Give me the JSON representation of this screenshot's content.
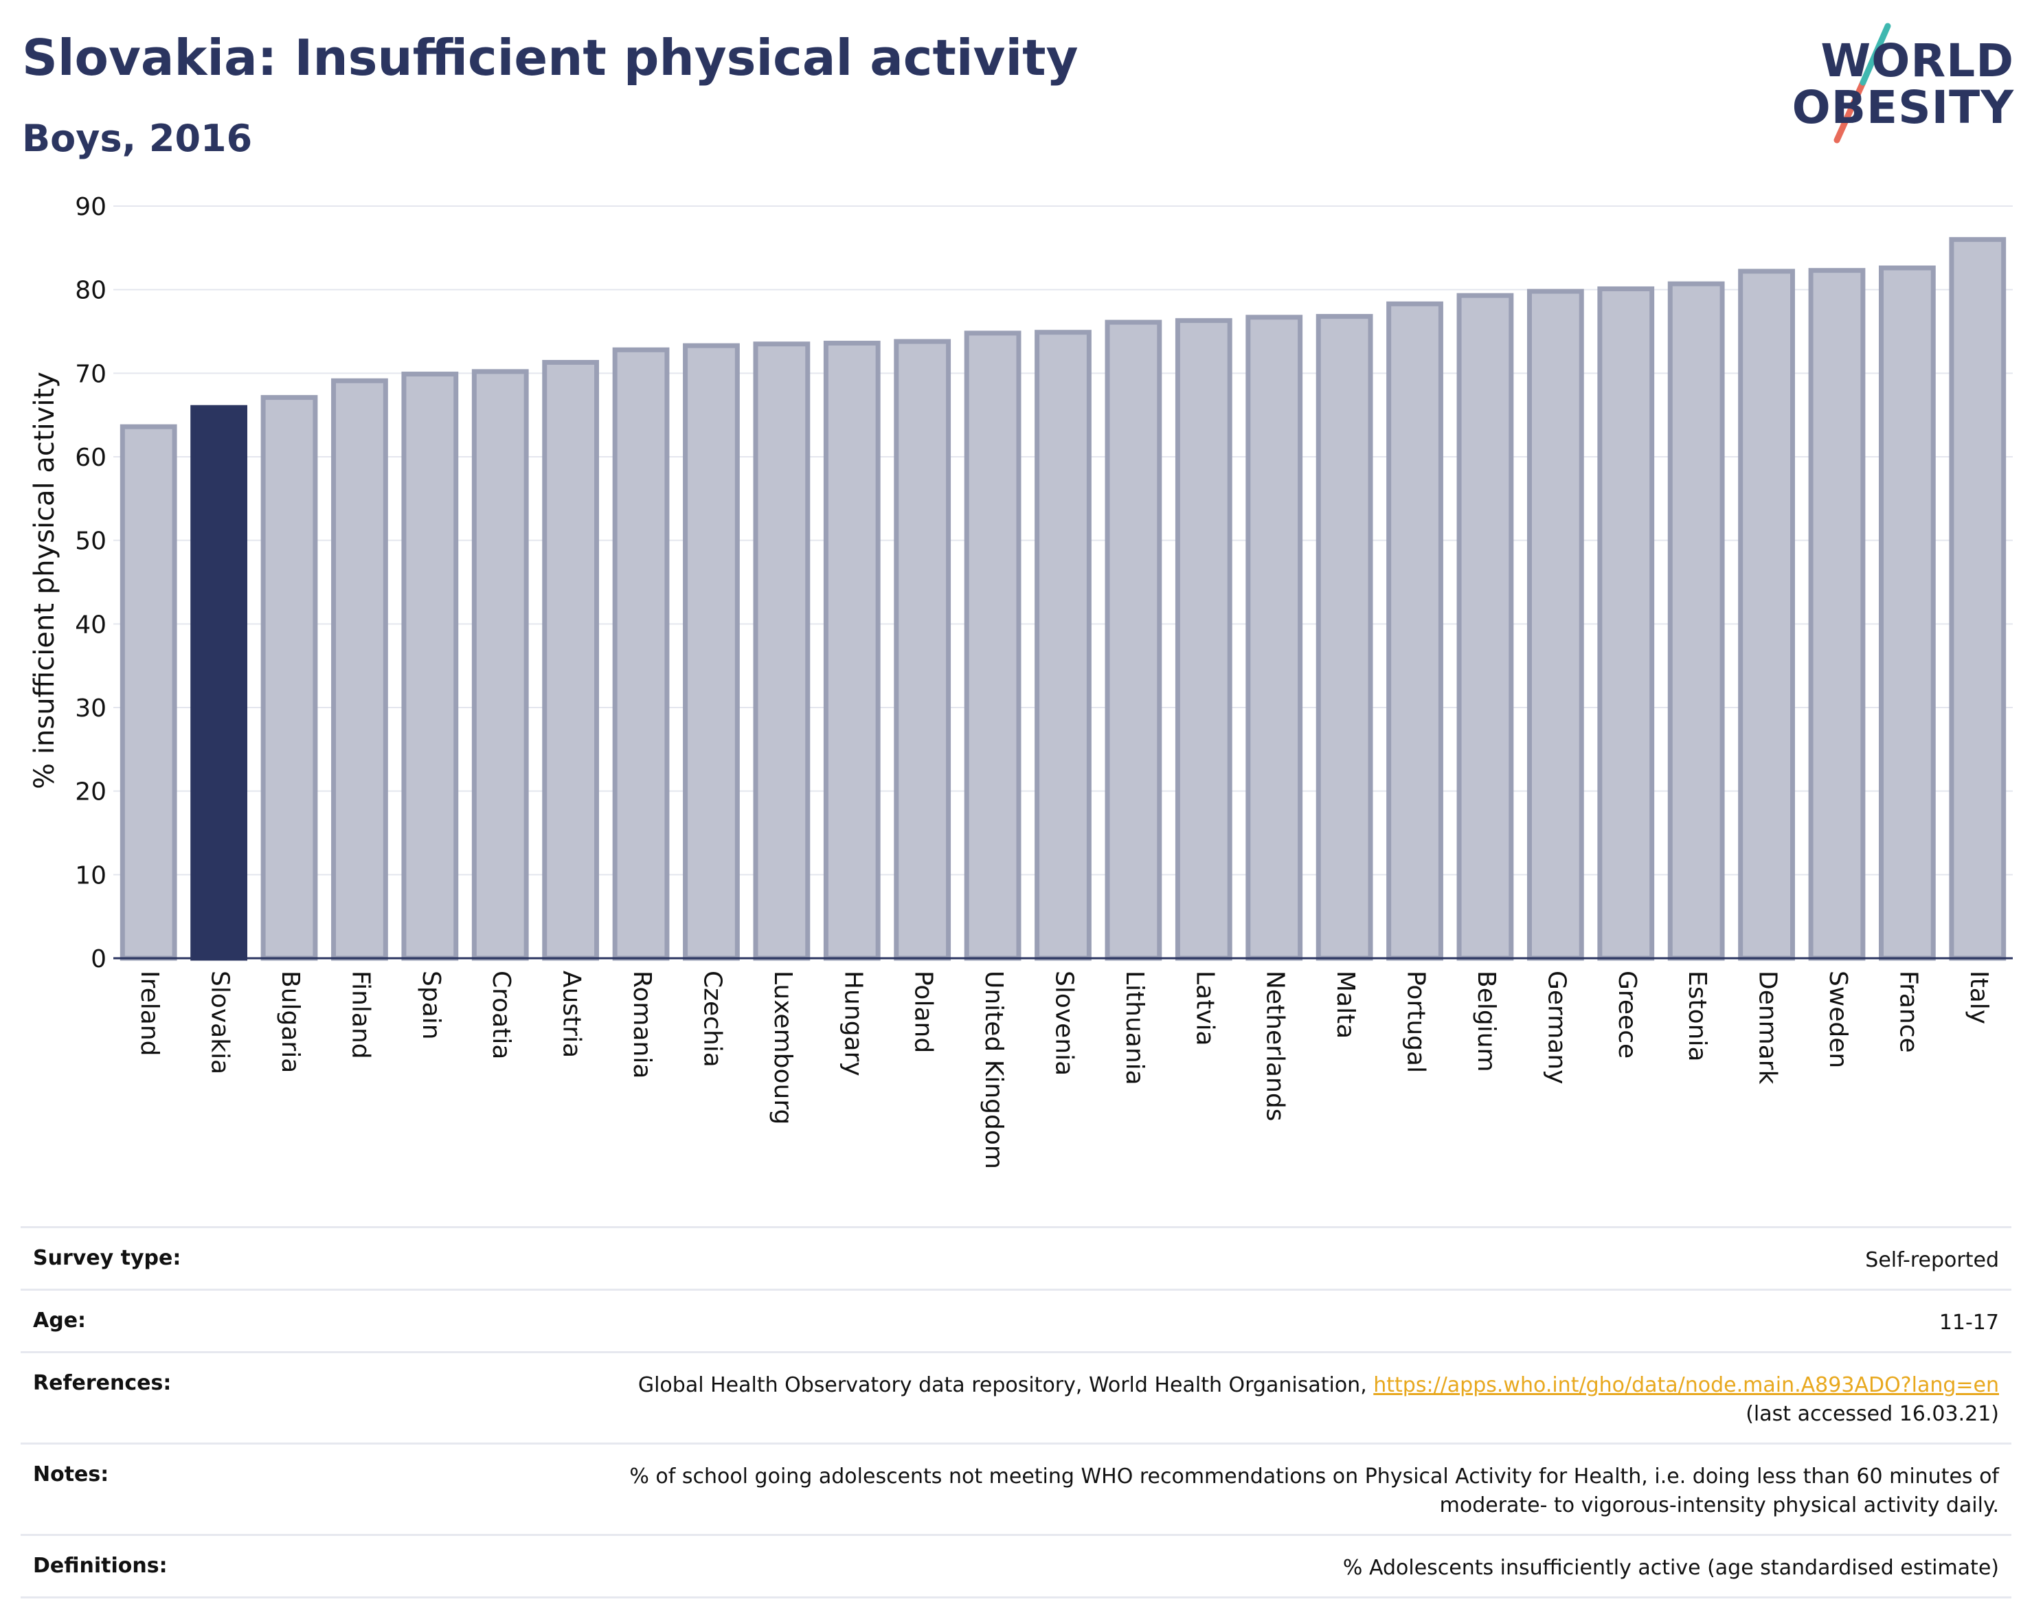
{
  "header": {
    "title": "Slovakia: Insufficient physical activity",
    "subtitle": "Boys, 2016"
  },
  "logo": {
    "line1": "WORLD",
    "line2": "OBESITY",
    "icon": "world-obesity-slash-logo",
    "colors": {
      "text": "#2b3560",
      "slash_top": "#3fb8b0",
      "slash_bottom": "#e86b5a"
    }
  },
  "colors": {
    "highlight": "#2b3560",
    "bar_fill": "#bfc2d0",
    "bar_stroke": "#9a9fb5",
    "link": "#e8a81e"
  },
  "chart_data": {
    "type": "bar",
    "title": "Slovakia: Insufficient physical activity",
    "subtitle": "Boys, 2016",
    "xlabel": "",
    "ylabel": "% insufficient physical activity",
    "ylim": [
      0,
      90
    ],
    "yticks": [
      0,
      10,
      20,
      30,
      40,
      50,
      60,
      70,
      80,
      90
    ],
    "grid": true,
    "highlight": "Slovakia",
    "categories": [
      "Ireland",
      "Slovakia",
      "Bulgaria",
      "Finland",
      "Spain",
      "Croatia",
      "Austria",
      "Romania",
      "Czechia",
      "Luxembourg",
      "Hungary",
      "Poland",
      "United Kingdom",
      "Slovenia",
      "Lithuania",
      "Latvia",
      "Netherlands",
      "Malta",
      "Portugal",
      "Belgium",
      "Germany",
      "Greece",
      "Estonia",
      "Denmark",
      "Sweden",
      "France",
      "Italy"
    ],
    "values": [
      63.6,
      65.9,
      67.1,
      69.1,
      69.9,
      70.2,
      71.3,
      72.8,
      73.3,
      73.5,
      73.6,
      73.8,
      74.8,
      74.9,
      76.1,
      76.3,
      76.7,
      76.8,
      78.3,
      79.3,
      79.8,
      80.1,
      80.7,
      82.2,
      82.3,
      82.6,
      86.0
    ]
  },
  "meta": {
    "rows": [
      {
        "label": "Survey type:",
        "value": "Self-reported"
      },
      {
        "label": "Age:",
        "value": "11-17"
      },
      {
        "label": "References:",
        "value": "Global Health Observatory data repository, World Health Organisation, ",
        "link": "https://apps.who.int/gho/data/node.main.A893ADO?lang=en",
        "value2": "(last accessed 16.03.21)"
      },
      {
        "label": "Notes:",
        "value": "% of school going adolescents not meeting WHO recommendations on Physical Activity for Health, i.e. doing less than 60 minutes of",
        "value2": "moderate- to vigorous-intensity physical activity daily."
      },
      {
        "label": "Definitions:",
        "value": "% Adolescents insufficiently active (age standardised estimate)"
      }
    ]
  }
}
